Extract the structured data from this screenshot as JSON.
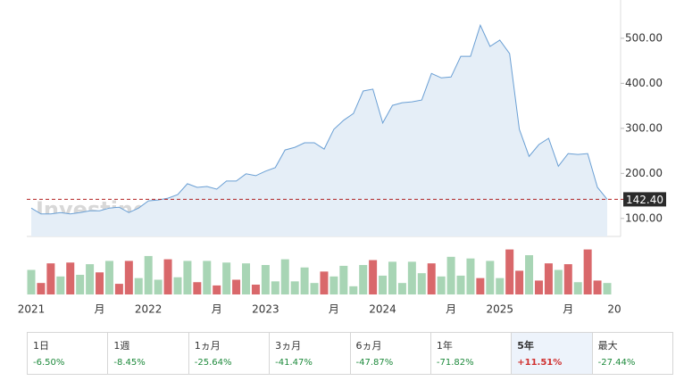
{
  "chart_data": {
    "type": "line",
    "categories": [
      "2021",
      null,
      null,
      null,
      null,
      null,
      null,
      "月",
      null,
      null,
      null,
      null,
      "2022",
      null,
      null,
      null,
      null,
      null,
      null,
      "月",
      null,
      null,
      null,
      null,
      "2023",
      null,
      null,
      null,
      null,
      null,
      null,
      "月",
      null,
      null,
      null,
      null,
      "2024",
      null,
      null,
      null,
      null,
      null,
      null,
      "月",
      null,
      null,
      null,
      null,
      "2025",
      null,
      null,
      null,
      null,
      null,
      null,
      "月",
      null,
      null,
      null,
      "20"
    ],
    "series": [
      {
        "color": "#6a9fd4",
        "fill": "#e5eef7",
        "values": [
          123,
          110,
          110,
          113,
          110,
          113,
          117,
          117,
          123,
          125,
          113,
          123,
          139,
          141,
          145,
          153,
          177,
          169,
          171,
          165,
          183,
          183,
          199,
          195,
          205,
          213,
          252,
          258,
          268,
          268,
          254,
          298,
          318,
          333,
          383,
          387,
          312,
          351,
          357,
          359,
          363,
          422,
          412,
          414,
          460,
          460,
          529,
          482,
          496,
          466,
          298,
          238,
          264,
          278,
          216,
          244,
          242,
          244,
          169,
          142.4
        ]
      }
    ],
    "ylim": [
      60,
      585
    ],
    "yticks": [
      {
        "value": 100,
        "label": "100.00"
      },
      {
        "value": 200,
        "label": "200.00"
      },
      {
        "value": 300,
        "label": "300.00"
      },
      {
        "value": 400,
        "label": "400.00"
      },
      {
        "value": 500,
        "label": "500.00"
      }
    ],
    "reference": {
      "value": 142.4,
      "label": "142.40",
      "color": "#b22222"
    },
    "watermark": "Investing.com",
    "volume": {
      "ylim": [
        0,
        60
      ],
      "values": [
        30,
        14,
        38,
        22,
        39,
        24,
        37,
        27,
        41,
        13,
        41,
        20,
        47,
        18,
        43,
        21,
        41,
        15,
        41,
        11,
        39,
        18,
        38,
        12,
        36,
        16,
        43,
        16,
        33,
        14,
        28,
        22,
        35,
        10,
        36,
        42,
        23,
        40,
        14,
        40,
        26,
        38,
        22,
        46,
        23,
        44,
        20,
        41,
        20,
        55,
        29,
        48,
        17,
        38,
        30,
        37,
        15,
        55,
        17,
        14
      ],
      "colors": [
        "#a8d5b5",
        "#d9686b",
        "#d9686b",
        "#a8d5b5",
        "#d9686b",
        "#a8d5b5",
        "#a8d5b5",
        "#d9686b",
        "#a8d5b5",
        "#d9686b",
        "#d9686b",
        "#a8d5b5",
        "#a8d5b5",
        "#a8d5b5",
        "#d9686b",
        "#a8d5b5",
        "#a8d5b5",
        "#d9686b",
        "#a8d5b5",
        "#d9686b",
        "#a8d5b5",
        "#d9686b",
        "#a8d5b5",
        "#d9686b",
        "#a8d5b5",
        "#a8d5b5",
        "#a8d5b5",
        "#a8d5b5",
        "#a8d5b5",
        "#a8d5b5",
        "#d9686b",
        "#a8d5b5",
        "#a8d5b5",
        "#a8d5b5",
        "#a8d5b5",
        "#d9686b",
        "#a8d5b5",
        "#a8d5b5",
        "#a8d5b5",
        "#a8d5b5",
        "#a8d5b5",
        "#d9686b",
        "#a8d5b5",
        "#a8d5b5",
        "#a8d5b5",
        "#a8d5b5",
        "#d9686b",
        "#a8d5b5",
        "#a8d5b5",
        "#d9686b",
        "#d9686b",
        "#a8d5b5",
        "#d9686b",
        "#d9686b",
        "#a8d5b5",
        "#d9686b",
        "#a8d5b5",
        "#d9686b",
        "#d9686b",
        "#a8d5b5"
      ]
    },
    "periods": [
      {
        "label": "1日",
        "change": "-6.50%",
        "color": "#1e8a3c"
      },
      {
        "label": "1週",
        "change": "-8.45%",
        "color": "#1e8a3c"
      },
      {
        "label": "1ヵ月",
        "change": "-25.64%",
        "color": "#1e8a3c"
      },
      {
        "label": "3ヵ月",
        "change": "-41.47%",
        "color": "#1e8a3c"
      },
      {
        "label": "6ヵ月",
        "change": "-47.87%",
        "color": "#1e8a3c"
      },
      {
        "label": "1年",
        "change": "-71.82%",
        "color": "#1e8a3c"
      },
      {
        "label": "5年",
        "change": "+11.51%",
        "color": "#d0302f"
      },
      {
        "label": "最大",
        "change": "-27.44%",
        "color": "#1e8a3c"
      }
    ],
    "selected_period": 6
  }
}
